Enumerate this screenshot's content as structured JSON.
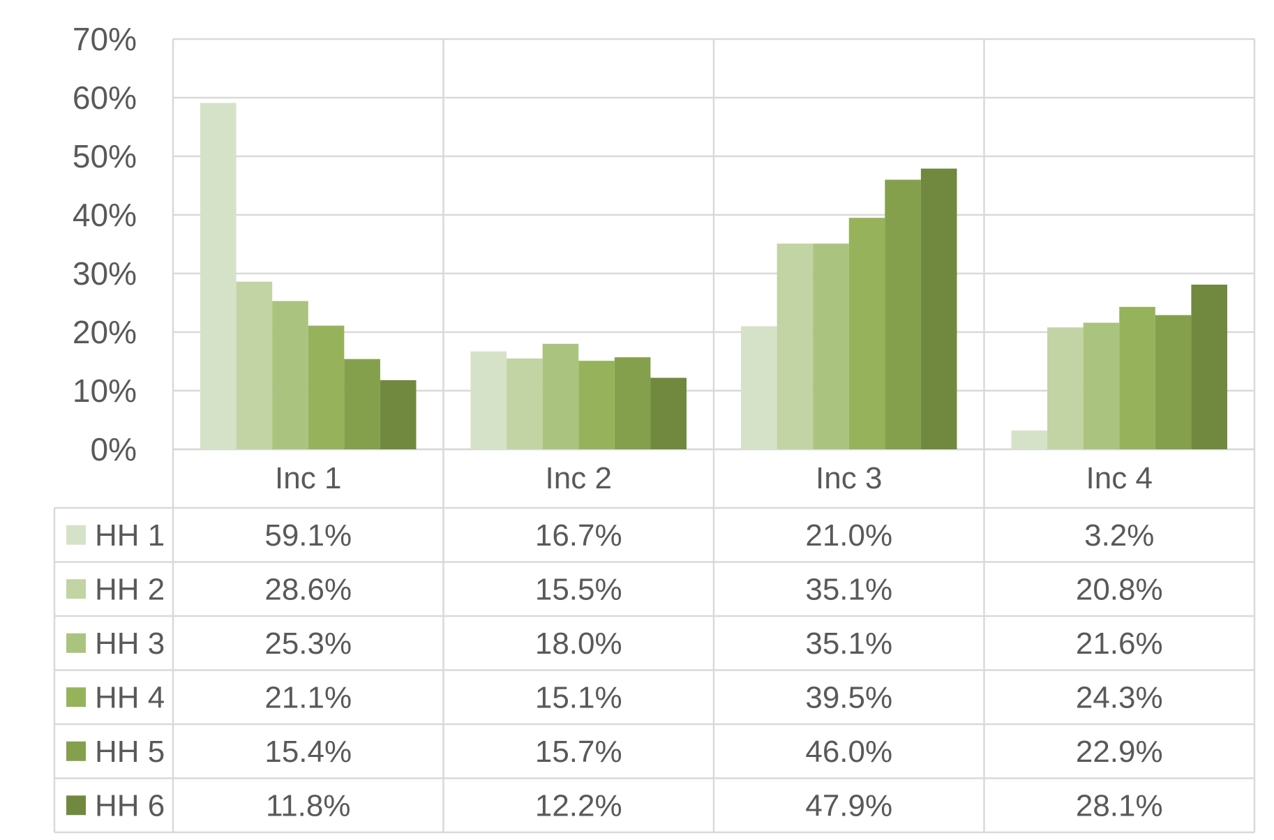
{
  "chart_data": {
    "type": "bar",
    "title": "",
    "xlabel": "",
    "ylabel": "",
    "ylim": [
      0,
      70
    ],
    "yticks": [
      "0%",
      "10%",
      "20%",
      "30%",
      "40%",
      "50%",
      "60%",
      "70%"
    ],
    "grid": true,
    "legend_placement": "data-table-left",
    "categories": [
      "Inc 1",
      "Inc 2",
      "Inc 3",
      "Inc 4"
    ],
    "series": [
      {
        "name": "HH 1",
        "color": "#d6e2c7",
        "values": [
          59.1,
          16.7,
          21.0,
          3.2
        ],
        "labels": [
          "59.1%",
          "16.7%",
          "21.0%",
          "3.2%"
        ]
      },
      {
        "name": "HH 2",
        "color": "#c2d3a4",
        "values": [
          28.6,
          15.5,
          35.1,
          20.8
        ],
        "labels": [
          "28.6%",
          "15.5%",
          "35.1%",
          "20.8%"
        ]
      },
      {
        "name": "HH 3",
        "color": "#aac47f",
        "values": [
          25.3,
          18.0,
          35.1,
          21.6
        ],
        "labels": [
          "25.3%",
          "18.0%",
          "35.1%",
          "21.6%"
        ]
      },
      {
        "name": "HH 4",
        "color": "#96b35c",
        "values": [
          21.1,
          15.1,
          39.5,
          24.3
        ],
        "labels": [
          "21.1%",
          "15.1%",
          "39.5%",
          "24.3%"
        ]
      },
      {
        "name": "HH 5",
        "color": "#84a04c",
        "values": [
          15.4,
          15.7,
          46.0,
          22.9
        ],
        "labels": [
          "15.4%",
          "15.7%",
          "46.0%",
          "22.9%"
        ]
      },
      {
        "name": "HH 6",
        "color": "#70893f",
        "values": [
          11.8,
          12.2,
          47.9,
          28.1
        ],
        "labels": [
          "11.8%",
          "12.2%",
          "47.9%",
          "28.1%"
        ]
      }
    ]
  }
}
